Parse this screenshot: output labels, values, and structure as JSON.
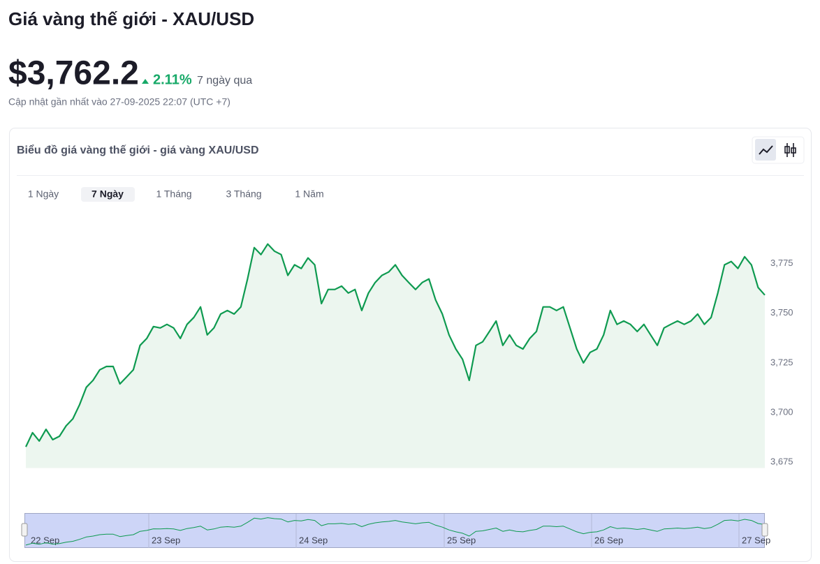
{
  "header": {
    "title": "Giá vàng thế giới - XAU/USD"
  },
  "price": {
    "value": "$3,762.2",
    "change": "2.11%",
    "period": "7 ngày qua",
    "updated": "Cập nhật gần nhất vào 27-09-2025 22:07 (UTC +7)"
  },
  "card": {
    "title": "Biểu đồ giá vàng thế giới - giá vàng XAU/USD",
    "tabs": [
      "1 Ngày",
      "7 Ngày",
      "1 Tháng",
      "3 Tháng",
      "1 Năm"
    ],
    "selected_tab": 1
  },
  "navigator": {
    "labels": [
      "22 Sep",
      "23 Sep",
      "24 Sep",
      "25 Sep",
      "26 Sep",
      "27 Sep"
    ]
  },
  "chart_data": {
    "type": "line",
    "color": "#0e9a50",
    "fill": "#ecf6ef",
    "grid": false,
    "ylim": [
      3672,
      3802
    ],
    "yticks": [
      {
        "value": 3675,
        "label": "3,675"
      },
      {
        "value": 3700,
        "label": "3,700"
      },
      {
        "value": 3725,
        "label": "3,725"
      },
      {
        "value": 3750,
        "label": "3,750"
      },
      {
        "value": 3775,
        "label": "3,775"
      }
    ],
    "values": [
      3682.7,
      3689.8,
      3685.6,
      3691.5,
      3686.3,
      3688,
      3693.3,
      3696.8,
      3703.9,
      3712.7,
      3716.2,
      3721.5,
      3723.2,
      3723.2,
      3714.4,
      3717.9,
      3721.5,
      3733.8,
      3737.3,
      3743.3,
      3742.6,
      3744.4,
      3742.6,
      3737.3,
      3744.4,
      3747.9,
      3753.2,
      3739.1,
      3742.6,
      3749.6,
      3751.4,
      3749.6,
      3753.2,
      3767.3,
      3783.1,
      3779.6,
      3784.9,
      3781.3,
      3779.6,
      3769.1,
      3774.4,
      3772.6,
      3777.9,
      3774.4,
      3754.9,
      3762,
      3762,
      3763.7,
      3760.2,
      3762,
      3751.4,
      3760.2,
      3765.5,
      3769.1,
      3770.8,
      3774.4,
      3769.1,
      3765.5,
      3762,
      3765.5,
      3767.3,
      3756.7,
      3749.6,
      3739.1,
      3732,
      3726.8,
      3716.2,
      3733.8,
      3735.6,
      3740.8,
      3746.1,
      3733.8,
      3739.1,
      3733.8,
      3732,
      3737.3,
      3740.8,
      3753.2,
      3753.2,
      3751.4,
      3753.2,
      3742.6,
      3732,
      3725,
      3730.3,
      3732,
      3739.1,
      3751.4,
      3744.4,
      3746.1,
      3744.4,
      3740.8,
      3744.4,
      3739.1,
      3733.8,
      3742.6,
      3744.4,
      3746.1,
      3744.4,
      3746.1,
      3749.6,
      3744.4,
      3747.9,
      3760.2,
      3774.4,
      3776.1,
      3772.6,
      3778.5,
      3774.4,
      3763,
      3759.2
    ]
  }
}
